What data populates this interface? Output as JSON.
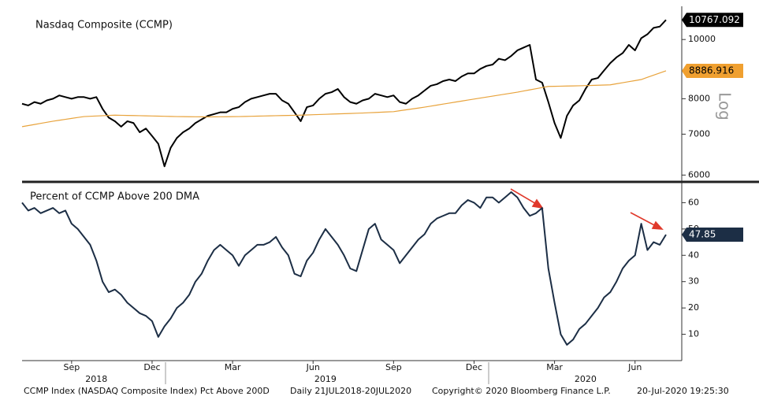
{
  "chart_data": [
    {
      "type": "line",
      "title": "Nasdaq Composite (CCMP)",
      "log": true,
      "scale_label": "Log",
      "grid": false,
      "ylim": [
        5900,
        11200
      ],
      "yticks": [
        6000,
        7000,
        8000,
        10000
      ],
      "series": [
        {
          "name": "CCMP",
          "color": "#000000",
          "values": [
            7850,
            7800,
            7900,
            7850,
            7950,
            8000,
            8100,
            8050,
            8000,
            8050,
            8050,
            8000,
            8050,
            7700,
            7450,
            7350,
            7200,
            7350,
            7300,
            7050,
            7150,
            6950,
            6750,
            6200,
            6650,
            6900,
            7050,
            7150,
            7300,
            7400,
            7500,
            7550,
            7600,
            7600,
            7700,
            7750,
            7900,
            8000,
            8050,
            8100,
            8150,
            8150,
            7950,
            7850,
            7600,
            7350,
            7750,
            7800,
            8000,
            8150,
            8200,
            8300,
            8050,
            7900,
            7850,
            7950,
            8000,
            8150,
            8100,
            8050,
            8100,
            7900,
            7850,
            8000,
            8100,
            8250,
            8400,
            8450,
            8550,
            8600,
            8550,
            8700,
            8800,
            8800,
            8950,
            9050,
            9100,
            9300,
            9250,
            9400,
            9600,
            9700,
            9800,
            8600,
            8500,
            7900,
            7300,
            6900,
            7500,
            7800,
            7950,
            8300,
            8600,
            8650,
            8900,
            9150,
            9350,
            9500,
            9800,
            9600,
            10050,
            10200,
            10450,
            10500,
            10767.092
          ]
        },
        {
          "name": "200 DMA",
          "color": "#e8a33c",
          "values": [
            7200,
            7230,
            7260,
            7290,
            7320,
            7350,
            7376,
            7402,
            7428,
            7454,
            7480,
            7488,
            7496,
            7504,
            7512,
            7520,
            7516,
            7512,
            7508,
            7504,
            7500,
            7496,
            7492,
            7488,
            7484,
            7480,
            7478,
            7476,
            7474,
            7472,
            7470,
            7472,
            7474,
            7476,
            7478,
            7480,
            7484,
            7488,
            7492,
            7496,
            7500,
            7504,
            7508,
            7512,
            7516,
            7520,
            7526,
            7532,
            7538,
            7544,
            7550,
            7556,
            7562,
            7568,
            7574,
            7580,
            7588,
            7596,
            7604,
            7612,
            7620,
            7646,
            7672,
            7698,
            7724,
            7750,
            7780,
            7810,
            7840,
            7870,
            7900,
            7930,
            7960,
            7990,
            8020,
            8050,
            8080,
            8110,
            8140,
            8170,
            8200,
            8236,
            8272,
            8308,
            8344,
            8380,
            8384,
            8388,
            8392,
            8396,
            8400,
            8406,
            8412,
            8418,
            8424,
            8430,
            8464,
            8498,
            8532,
            8566,
            8600,
            8672,
            8744,
            8816,
            8886.916
          ]
        }
      ]
    },
    {
      "type": "line",
      "title": "Percent of CCMP Above 200 DMA",
      "grid": false,
      "ylim": [
        0,
        67
      ],
      "yticks": [
        10,
        20,
        30,
        40,
        50,
        60
      ],
      "categories": [
        null,
        null,
        null,
        null,
        null,
        null,
        null,
        null,
        "Sep",
        null,
        null,
        null,
        null,
        null,
        null,
        null,
        null,
        null,
        null,
        null,
        null,
        "Dec",
        null,
        null,
        null,
        null,
        null,
        null,
        null,
        null,
        null,
        null,
        null,
        null,
        "Mar",
        null,
        null,
        null,
        null,
        null,
        null,
        null,
        null,
        null,
        null,
        null,
        null,
        "Jun",
        null,
        null,
        null,
        null,
        null,
        null,
        null,
        null,
        null,
        null,
        null,
        null,
        "Sep",
        null,
        null,
        null,
        null,
        null,
        null,
        null,
        null,
        null,
        null,
        null,
        null,
        "Dec",
        null,
        null,
        null,
        null,
        null,
        null,
        null,
        null,
        null,
        null,
        null,
        null,
        "Mar",
        null,
        null,
        null,
        null,
        null,
        null,
        null,
        null,
        null,
        null,
        null,
        null,
        "Jun",
        null,
        null,
        null,
        null,
        null
      ],
      "year_ticks": [
        {
          "value": 12,
          "label": "2018"
        },
        {
          "value": 49,
          "label": "2019"
        },
        {
          "value": 91,
          "label": "2020"
        }
      ],
      "series": [
        {
          "name": "Pct Above 200D",
          "color": "#1c2e45",
          "values": [
            60,
            57,
            58,
            56,
            57,
            58,
            56,
            57,
            52,
            50,
            47,
            44,
            38,
            30,
            26,
            27,
            25,
            22,
            20,
            18,
            17,
            15,
            9,
            13,
            16,
            20,
            22,
            25,
            30,
            33,
            38,
            42,
            44,
            42,
            40,
            36,
            40,
            42,
            44,
            44,
            45,
            47,
            43,
            40,
            33,
            32,
            38,
            41,
            46,
            50,
            47,
            44,
            40,
            35,
            34,
            42,
            50,
            52,
            46,
            44,
            42,
            37,
            40,
            43,
            46,
            48,
            52,
            54,
            55,
            56,
            56,
            59,
            61,
            60,
            58,
            62,
            62,
            60,
            62,
            64,
            62,
            58,
            55,
            56,
            58,
            35,
            22,
            10,
            6,
            8,
            12,
            14,
            17,
            20,
            24,
            26,
            30,
            35,
            38,
            40,
            52,
            42,
            45,
            44,
            47.85
          ]
        }
      ]
    }
  ],
  "footer": [
    "CCMP Index (NASDAQ Composite Index) Pct Above 200D",
    "Daily 21JUL2018-20JUL2020",
    "Copyright© 2020 Bloomberg Finance L.P.",
    "20-Jul-2020 19:25:30"
  ]
}
